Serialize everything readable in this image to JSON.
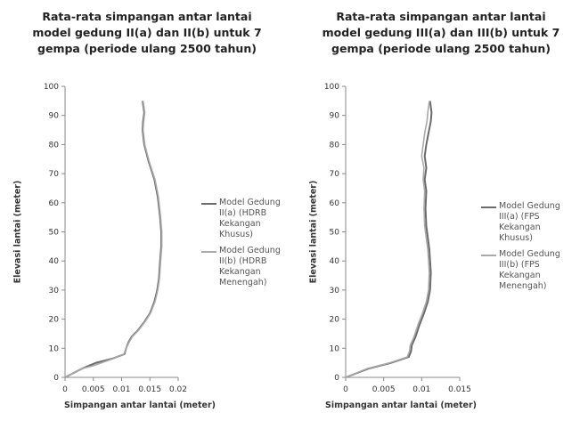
{
  "chart_data": [
    {
      "type": "line",
      "title_lines": [
        "Rata-rata simpangan antar lantai",
        "model gedung II(a) dan II(b) untuk 7",
        "gempa (periode ulang 2500 tahun)"
      ],
      "xlabel": "Simpangan antar lantai (meter)",
      "ylabel": "Elevasi lantai (meter)",
      "xlim": [
        0,
        0.02
      ],
      "ylim": [
        0,
        100
      ],
      "xticks": [
        "0",
        "0.005",
        "0.01",
        "0.015",
        "0.02"
      ],
      "xtick_values": [
        0,
        0.005,
        0.01,
        0.015,
        0.02
      ],
      "yticks": [
        0,
        10,
        20,
        30,
        40,
        50,
        60,
        70,
        80,
        90,
        100
      ],
      "legend_position": "right",
      "series": [
        {
          "name": "Model Gedung II(a) (HDRB Kekangan Khusus)",
          "color": "#6b6b6b",
          "x": [
            0.0,
            0.003,
            0.0055,
            0.0085,
            0.0105,
            0.0108,
            0.0112,
            0.0118,
            0.0128,
            0.014,
            0.015,
            0.0158,
            0.0163,
            0.0166,
            0.0168,
            0.017,
            0.017,
            0.0168,
            0.0164,
            0.0158,
            0.0148,
            0.014,
            0.0137,
            0.0138,
            0.014,
            0.0137
          ],
          "y": [
            0,
            3,
            5,
            6.5,
            8,
            10,
            12,
            14,
            16,
            19,
            22,
            26,
            30,
            34,
            40,
            45,
            50,
            55,
            62,
            68,
            74,
            80,
            85,
            88,
            91,
            95
          ]
        },
        {
          "name": "Model Gedung II(b) (HDRB Kekangan Menengah)",
          "color": "#a9a9a9",
          "x": [
            0.0,
            0.003,
            0.005,
            0.0086,
            0.0104,
            0.0108,
            0.0113,
            0.0119,
            0.0129,
            0.0141,
            0.0151,
            0.0159,
            0.0164,
            0.0167,
            0.0169,
            0.0171,
            0.0171,
            0.0169,
            0.0165,
            0.0159,
            0.0149,
            0.0141,
            0.0138,
            0.0139,
            0.0141,
            0.0138
          ],
          "y": [
            0,
            3,
            4,
            6.5,
            8,
            10,
            12,
            14,
            16,
            19,
            22,
            26,
            30,
            34,
            40,
            45,
            50,
            55,
            62,
            68,
            74,
            80,
            85,
            88,
            91,
            95
          ]
        }
      ]
    },
    {
      "type": "line",
      "title_lines": [
        "Rata-rata simpangan antar lantai",
        "model gedung III(a) dan III(b) untuk 7",
        "gempa (periode ulang 2500 tahun)"
      ],
      "xlabel": "Simpangan antar lantai (meter)",
      "ylabel": "Elevasi lantai (meter)",
      "xlim": [
        0,
        0.015
      ],
      "ylim": [
        0,
        100
      ],
      "xticks": [
        "0",
        "0.005",
        "0.01",
        "0.015"
      ],
      "xtick_values": [
        0,
        0.005,
        0.01,
        0.015
      ],
      "yticks": [
        0,
        10,
        20,
        30,
        40,
        50,
        60,
        70,
        80,
        90,
        100
      ],
      "legend_position": "right",
      "series": [
        {
          "name": "Model Gedung III(a) (FPS Kekangan Khusus)",
          "color": "#6b6b6b",
          "x": [
            0.0,
            0.003,
            0.006,
            0.0083,
            0.0086,
            0.0087,
            0.0092,
            0.0097,
            0.0103,
            0.0108,
            0.0111,
            0.0112,
            0.011,
            0.0106,
            0.0105,
            0.0106,
            0.0104,
            0.0106,
            0.0104,
            0.0106,
            0.0109,
            0.0112,
            0.0113,
            0.0111
          ],
          "y": [
            0,
            3,
            5,
            7,
            9,
            11,
            14,
            18,
            22,
            26,
            30,
            36,
            44,
            52,
            58,
            64,
            68,
            72,
            76,
            80,
            84,
            88,
            91,
            95
          ]
        },
        {
          "name": "Model Gedung III(b) (FPS Kekangan Menengah)",
          "color": "#a9a9a9",
          "x": [
            0.0,
            0.0028,
            0.0058,
            0.0081,
            0.0084,
            0.0085,
            0.009,
            0.0095,
            0.0101,
            0.0106,
            0.0109,
            0.011,
            0.0108,
            0.0104,
            0.0103,
            0.0104,
            0.0102,
            0.0103,
            0.01,
            0.0102,
            0.0104,
            0.0107,
            0.0108,
            0.011
          ],
          "y": [
            0,
            3,
            5,
            7,
            9,
            11,
            14,
            18,
            22,
            26,
            30,
            36,
            44,
            52,
            58,
            64,
            68,
            72,
            76,
            80,
            84,
            88,
            91,
            95
          ]
        }
      ]
    }
  ]
}
